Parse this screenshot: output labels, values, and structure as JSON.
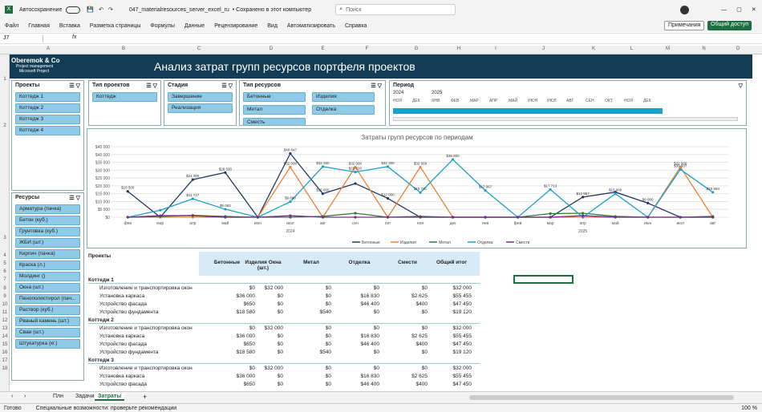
{
  "titlebar": {
    "autosave": "Автосохранение",
    "filename": "047_materialresources_server_excel_ru",
    "saved": "• Сохранено в этот компьютер",
    "search": "Поиск"
  },
  "menu": [
    "Файл",
    "Главная",
    "Вставка",
    "Разметка страницы",
    "Формулы",
    "Данные",
    "Рецензирование",
    "Вид",
    "Автоматизировать",
    "Справка"
  ],
  "comments": "Примечания",
  "share": "Общий доступ",
  "namebox": "J7",
  "cols": [
    "A",
    "B",
    "C",
    "D",
    "E",
    "F",
    "G",
    "H",
    "I",
    "J",
    "K",
    "L",
    "M",
    "N",
    "O"
  ],
  "rows": [
    "1",
    "2",
    "3",
    "4",
    "5",
    "6",
    "7",
    "8",
    "9",
    "10",
    "11",
    "12",
    "13",
    "14",
    "15",
    "16",
    "17",
    "18"
  ],
  "brand": {
    "name": "Oberemok & Co",
    "l1": "Project management",
    "l2": "Microsoft Project"
  },
  "title": "Анализ затрат групп ресурсов портфеля проектов",
  "slicers": {
    "projects": {
      "title": "Проекты",
      "items": [
        "Коттедж 1",
        "Коттедж 2",
        "Коттедж 3",
        "Коттедж 4"
      ]
    },
    "type": {
      "title": "Тип проектов",
      "items": [
        "Коттедж"
      ]
    },
    "stage": {
      "title": "Стадия",
      "items": [
        "Завершение",
        "Реализация"
      ]
    },
    "restype": {
      "title": "Тип ресурсов",
      "items": [
        "Бетонные",
        "Изделия",
        "Метал",
        "Отделка",
        "Сместь"
      ]
    },
    "period": {
      "title": "Период",
      "y1": "2024",
      "y2": "2025",
      "months": [
        "НОЯ",
        "ДЕК",
        "ЯНВ",
        "ФЕВ",
        "МАР",
        "АПР",
        "МАЙ",
        "ИЮН",
        "ИЮЛ",
        "АВГ",
        "СЕН",
        "ОКТ",
        "НОЯ",
        "ДЕК"
      ]
    },
    "resources": {
      "title": "Ресурсы",
      "items": [
        "Арматура (пачка)",
        "Бетон (куб.)",
        "Грунтовка (куб.)",
        "ЖБИ (шт.)",
        "Кирпич (пачка)",
        "Краска (л.)",
        "Молдинг ()",
        "Окна (шт.)",
        "Пенополистирол (пач...",
        "Раствор (куб.)",
        "Рваный камень (шт.)",
        "Сваи (шт.)",
        "Штукатурка (кг.)"
      ]
    }
  },
  "chart_data": {
    "type": "line",
    "title": "Затраты групп ресурсов по периодам",
    "categories": [
      "фев",
      "мар",
      "апр",
      "май",
      "июн",
      "июл",
      "авг",
      "сен",
      "окт",
      "ноя",
      "дек",
      "янв",
      "фев",
      "мар",
      "апр",
      "май",
      "июн",
      "июл",
      "авг"
    ],
    "year_labels": [
      "2024",
      "2025"
    ],
    "yticks": [
      "$0",
      "$5 000",
      "$10 000",
      "$15 000",
      "$20 000",
      "$25 000",
      "$30 000",
      "$35 000",
      "$40 000",
      "$45 000"
    ],
    "ylim": [
      0,
      45000
    ],
    "series": [
      {
        "name": "Бетонные",
        "color": "#1f3864",
        "values": [
          16500,
          0,
          24000,
          28500,
          0,
          40647,
          15000,
          21500,
          12000,
          0,
          0,
          0,
          0,
          0,
          12867,
          16000,
          9000,
          0,
          0
        ]
      },
      {
        "name": "Изделия",
        "color": "#ed7d31",
        "values": [
          0,
          0,
          0,
          0,
          0,
          32000,
          0,
          32000,
          0,
          32000,
          0,
          0,
          0,
          0,
          0,
          0,
          0,
          32000,
          0
        ]
      },
      {
        "name": "Метал",
        "color": "#2e7d32",
        "values": [
          0,
          540,
          1200,
          500,
          0,
          0,
          540,
          2543,
          0,
          540,
          0,
          0,
          0,
          2300,
          2543,
          540,
          0,
          0,
          540
        ]
      },
      {
        "name": "Отделка",
        "color": "#1ba1c9",
        "values": [
          0,
          4500,
          11747,
          5083,
          0,
          9880,
          32280,
          28820,
          32300,
          15731,
          36800,
          17067,
          0,
          17713,
          0,
          15000,
          0,
          30507,
          15893
        ]
      },
      {
        "name": "Смести",
        "color": "#7b2c8f",
        "values": [
          0,
          1000,
          1000,
          0,
          0,
          1000,
          0,
          0,
          0,
          0,
          0,
          0,
          0,
          0,
          1000,
          0,
          0,
          0,
          0
        ]
      }
    ],
    "labels": [
      "$16 500",
      "$24 000",
      "$28 500",
      "$40 647",
      "$32 280",
      "$32 000",
      "$32 300",
      "$32 000",
      "$36 800",
      "$17 067",
      "$17 713",
      "$12 867",
      "$15 000",
      "$9 000",
      "$32 000",
      "$30 507",
      "$15 893",
      "$11 747",
      "$5 083",
      "$9 880",
      "$28 820",
      "$15 731",
      "$12 000"
    ]
  },
  "pivot": {
    "rowlabel": "Проекты",
    "headers": [
      "Бетонные",
      "Изделия Окна (шт.)",
      "Метал",
      "Отделка",
      "Смести",
      "Общий итог"
    ],
    "groups": [
      {
        "name": "Коттедж 1",
        "rows": [
          [
            "Изготовление и транспортировка окон",
            "$0",
            "$32 000",
            "$0",
            "$0",
            "$0",
            "$32 000"
          ],
          [
            "Установка каркаса",
            "$36 000",
            "$0",
            "$0",
            "$16 830",
            "$2 625",
            "$55 455"
          ],
          [
            "Устройство фасада",
            "$650",
            "$0",
            "$0",
            "$46 400",
            "$400",
            "$47 450"
          ],
          [
            "Устройство фундамента",
            "$18 580",
            "$0",
            "$540",
            "$0",
            "$0",
            "$19 120"
          ]
        ]
      },
      {
        "name": "Коттедж 2",
        "rows": [
          [
            "Изготовление и транспортировка окон",
            "$0",
            "$32 000",
            "$0",
            "$0",
            "$0",
            "$32 000"
          ],
          [
            "Установка каркаса",
            "$36 000",
            "$0",
            "$0",
            "$16 830",
            "$2 625",
            "$55 455"
          ],
          [
            "Устройство фасада",
            "$650",
            "$0",
            "$0",
            "$46 400",
            "$400",
            "$47 450"
          ],
          [
            "Устройство фундамента",
            "$18 580",
            "$0",
            "$540",
            "$0",
            "$0",
            "$19 120"
          ]
        ]
      },
      {
        "name": "Коттедж 3",
        "rows": [
          [
            "Изготовление и транспортировка окон",
            "$0",
            "$32 000",
            "$0",
            "$0",
            "$0",
            "$32 000"
          ],
          [
            "Установка каркаса",
            "$36 000",
            "$0",
            "$0",
            "$16 830",
            "$2 625",
            "$55 455"
          ],
          [
            "Устройство фасада",
            "$650",
            "$0",
            "$0",
            "$46 400",
            "$400",
            "$47 450"
          ]
        ]
      }
    ]
  },
  "tabs": [
    "Плн",
    "Задачи",
    "Затраты"
  ],
  "status": {
    "ready": "Готово",
    "access": "Специальные возможности: проверьте рекомендации",
    "zoom": "100 %"
  }
}
